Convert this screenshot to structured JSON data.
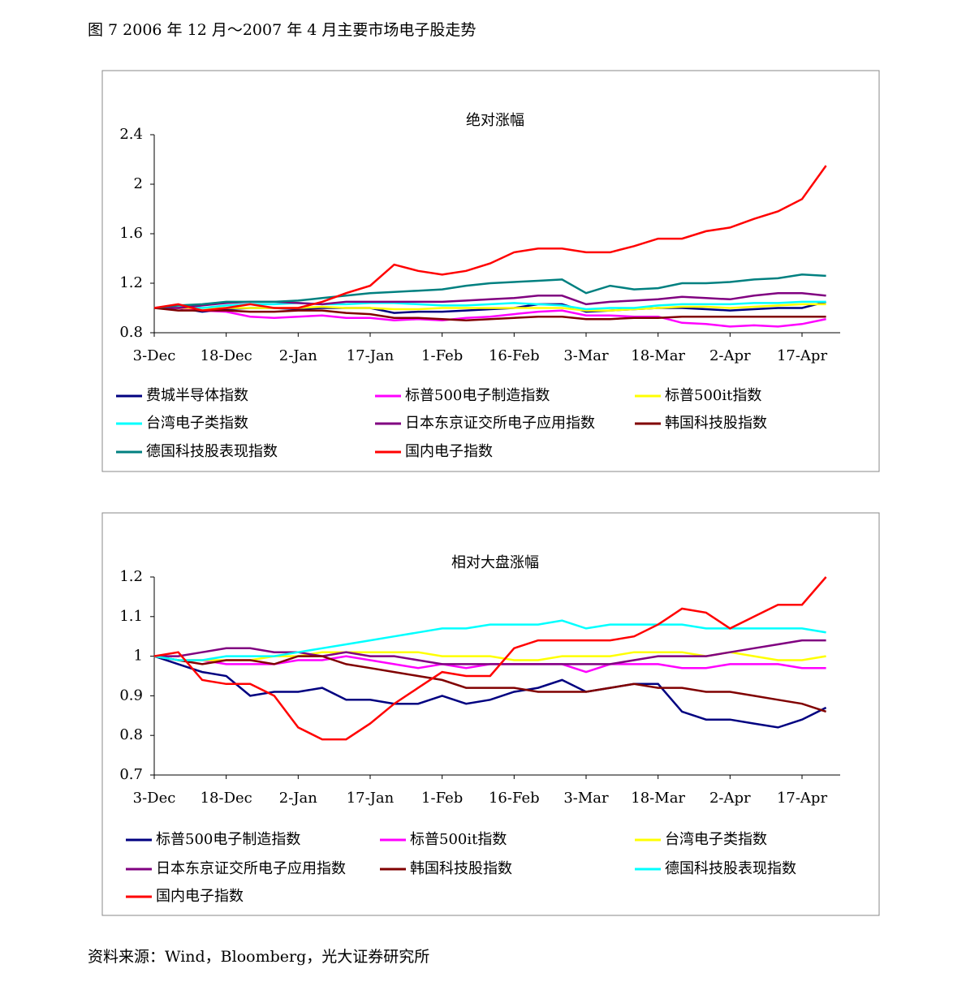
{
  "caption": "图 7 2006 年 12 月～2007 年 4 月主要市场电子股走势",
  "source": "资料来源：Wind，Bloomberg，光大证券研究所",
  "chart_data": [
    {
      "type": "line",
      "title": "绝对涨幅",
      "categories": [
        "3-Dec",
        null,
        null,
        "18-Dec",
        null,
        null,
        "2-Jan",
        null,
        null,
        "17-Jan",
        null,
        null,
        "1-Feb",
        null,
        null,
        "16-Feb",
        null,
        null,
        "3-Mar",
        null,
        null,
        "18-Mar",
        null,
        null,
        "2-Apr",
        null,
        null,
        "17-Apr",
        null
      ],
      "ylim": [
        0.8,
        2.4
      ],
      "yticks": [
        0.8,
        1.2,
        1.6,
        2,
        2.4
      ],
      "series": [
        {
          "name": "费城半导体指数",
          "color": "#000080",
          "values": [
            1,
            1.0,
            0.97,
            0.99,
            1.0,
            1.0,
            0.99,
            1.0,
            1.0,
            1.0,
            0.96,
            0.97,
            0.97,
            0.98,
            0.99,
            1.0,
            1.03,
            1.03,
            0.97,
            0.98,
            0.99,
            1.0,
            1.0,
            0.99,
            0.98,
            0.99,
            1.0,
            1.0,
            1.05
          ]
        },
        {
          "name": "标普500电子制造指数",
          "color": "#ff00ff",
          "values": [
            1,
            1.0,
            0.98,
            0.97,
            0.93,
            0.92,
            0.93,
            0.94,
            0.92,
            0.92,
            0.9,
            0.91,
            0.9,
            0.92,
            0.93,
            0.95,
            0.97,
            0.98,
            0.94,
            0.94,
            0.93,
            0.93,
            0.88,
            0.87,
            0.85,
            0.86,
            0.85,
            0.87,
            0.91
          ]
        },
        {
          "name": "标普500it指数",
          "color": "#ffff00",
          "values": [
            1,
            1.0,
            1.0,
            1.0,
            1.0,
            1.0,
            1.0,
            1.01,
            1.0,
            1.0,
            0.99,
            0.99,
            1.0,
            1.0,
            1.0,
            1.0,
            1.0,
            1.0,
            0.98,
            0.98,
            0.99,
            1.0,
            1.01,
            1.01,
            1.0,
            1.01,
            1.02,
            1.03,
            1.03
          ]
        },
        {
          "name": "台湾电子类指数",
          "color": "#00ffff",
          "values": [
            1,
            1.02,
            1.0,
            1.02,
            1.03,
            1.03,
            1.04,
            1.03,
            1.03,
            1.04,
            1.04,
            1.03,
            1.02,
            1.02,
            1.03,
            1.04,
            1.03,
            1.02,
            0.99,
            1.0,
            1.0,
            1.02,
            1.03,
            1.03,
            1.03,
            1.04,
            1.04,
            1.05,
            1.05
          ]
        },
        {
          "name": "日本东京证交所电子应用指数",
          "color": "#800080",
          "values": [
            1,
            1.0,
            1.02,
            1.04,
            1.05,
            1.05,
            1.04,
            1.03,
            1.05,
            1.05,
            1.05,
            1.05,
            1.05,
            1.06,
            1.07,
            1.08,
            1.1,
            1.1,
            1.03,
            1.05,
            1.06,
            1.07,
            1.09,
            1.08,
            1.07,
            1.1,
            1.12,
            1.12,
            1.1
          ]
        },
        {
          "name": "韩国科技股指数",
          "color": "#800000",
          "values": [
            1,
            0.98,
            0.98,
            0.98,
            0.97,
            0.97,
            0.98,
            0.98,
            0.96,
            0.95,
            0.92,
            0.92,
            0.91,
            0.9,
            0.91,
            0.92,
            0.93,
            0.93,
            0.91,
            0.91,
            0.92,
            0.92,
            0.93,
            0.93,
            0.93,
            0.93,
            0.93,
            0.93,
            0.93
          ]
        },
        {
          "name": "德国科技股表现指数",
          "color": "#008080",
          "values": [
            1,
            1.02,
            1.03,
            1.05,
            1.05,
            1.05,
            1.06,
            1.08,
            1.1,
            1.12,
            1.13,
            1.14,
            1.15,
            1.18,
            1.2,
            1.21,
            1.22,
            1.23,
            1.12,
            1.18,
            1.15,
            1.16,
            1.2,
            1.2,
            1.21,
            1.23,
            1.24,
            1.27,
            1.26
          ]
        },
        {
          "name": "国内电子指数",
          "color": "#ff0000",
          "values": [
            1,
            1.03,
            0.98,
            1.0,
            1.03,
            1.0,
            1.0,
            1.05,
            1.12,
            1.18,
            1.35,
            1.3,
            1.27,
            1.3,
            1.36,
            1.45,
            1.48,
            1.48,
            1.45,
            1.45,
            1.5,
            1.56,
            1.56,
            1.62,
            1.65,
            1.72,
            1.78,
            1.88,
            2.15
          ]
        }
      ]
    },
    {
      "type": "line",
      "title": "相对大盘涨幅",
      "categories": [
        "3-Dec",
        null,
        null,
        "18-Dec",
        null,
        null,
        "2-Jan",
        null,
        null,
        "17-Jan",
        null,
        null,
        "1-Feb",
        null,
        null,
        "16-Feb",
        null,
        null,
        "3-Mar",
        null,
        null,
        "18-Mar",
        null,
        null,
        "2-Apr",
        null,
        null,
        "17-Apr",
        null
      ],
      "ylim": [
        0.7,
        1.2
      ],
      "yticks": [
        0.7,
        0.8,
        0.9,
        1,
        1.1,
        1.2
      ],
      "series": [
        {
          "name": "标普500电子制造指数",
          "color": "#000080",
          "values": [
            1,
            0.98,
            0.96,
            0.95,
            0.9,
            0.91,
            0.91,
            0.92,
            0.89,
            0.89,
            0.88,
            0.88,
            0.9,
            0.88,
            0.89,
            0.91,
            0.92,
            0.94,
            0.91,
            0.92,
            0.93,
            0.93,
            0.86,
            0.84,
            0.84,
            0.83,
            0.82,
            0.84,
            0.87
          ]
        },
        {
          "name": "标普500it指数",
          "color": "#ff00ff",
          "values": [
            1,
            0.99,
            0.99,
            0.98,
            0.98,
            0.98,
            0.99,
            0.99,
            1.0,
            0.99,
            0.98,
            0.97,
            0.98,
            0.97,
            0.98,
            0.98,
            0.98,
            0.98,
            0.96,
            0.98,
            0.98,
            0.98,
            0.97,
            0.97,
            0.98,
            0.98,
            0.98,
            0.97,
            0.97
          ]
        },
        {
          "name": "台湾电子类指数",
          "color": "#ffff00",
          "values": [
            1,
            0.99,
            0.99,
            0.99,
            0.99,
            1.0,
            1.0,
            1.01,
            1.01,
            1.01,
            1.01,
            1.01,
            1.0,
            1.0,
            1.0,
            0.99,
            0.99,
            1.0,
            1.0,
            1.0,
            1.01,
            1.01,
            1.01,
            1.0,
            1.01,
            1.0,
            0.99,
            0.99,
            1.0
          ]
        },
        {
          "name": "日本东京证交所电子应用指数",
          "color": "#800080",
          "values": [
            1,
            1.0,
            1.01,
            1.02,
            1.02,
            1.01,
            1.01,
            1.0,
            1.01,
            1.0,
            1.0,
            0.99,
            0.98,
            0.98,
            0.98,
            0.98,
            0.98,
            0.98,
            0.98,
            0.98,
            0.99,
            1.0,
            1.0,
            1.0,
            1.01,
            1.02,
            1.03,
            1.04,
            1.04
          ]
        },
        {
          "name": "韩国科技股指数",
          "color": "#800000",
          "values": [
            1,
            0.99,
            0.98,
            0.99,
            0.99,
            0.98,
            1.0,
            1.0,
            0.98,
            0.97,
            0.96,
            0.95,
            0.94,
            0.92,
            0.92,
            0.92,
            0.91,
            0.91,
            0.91,
            0.92,
            0.93,
            0.92,
            0.92,
            0.91,
            0.91,
            0.9,
            0.89,
            0.88,
            0.86
          ]
        },
        {
          "name": "德国科技股表现指数",
          "color": "#00ffff",
          "values": [
            1,
            0.99,
            0.99,
            1.0,
            1.0,
            1.0,
            1.01,
            1.02,
            1.03,
            1.04,
            1.05,
            1.06,
            1.07,
            1.07,
            1.08,
            1.08,
            1.08,
            1.09,
            1.07,
            1.08,
            1.08,
            1.08,
            1.08,
            1.07,
            1.07,
            1.07,
            1.07,
            1.07,
            1.06
          ]
        },
        {
          "name": "国内电子指数",
          "color": "#ff0000",
          "values": [
            1,
            1.01,
            0.94,
            0.93,
            0.93,
            0.9,
            0.82,
            0.79,
            0.79,
            0.83,
            0.88,
            0.92,
            0.96,
            0.95,
            0.95,
            1.02,
            1.04,
            1.04,
            1.04,
            1.04,
            1.05,
            1.08,
            1.12,
            1.11,
            1.07,
            1.1,
            1.13,
            1.13,
            1.2
          ]
        }
      ]
    }
  ]
}
